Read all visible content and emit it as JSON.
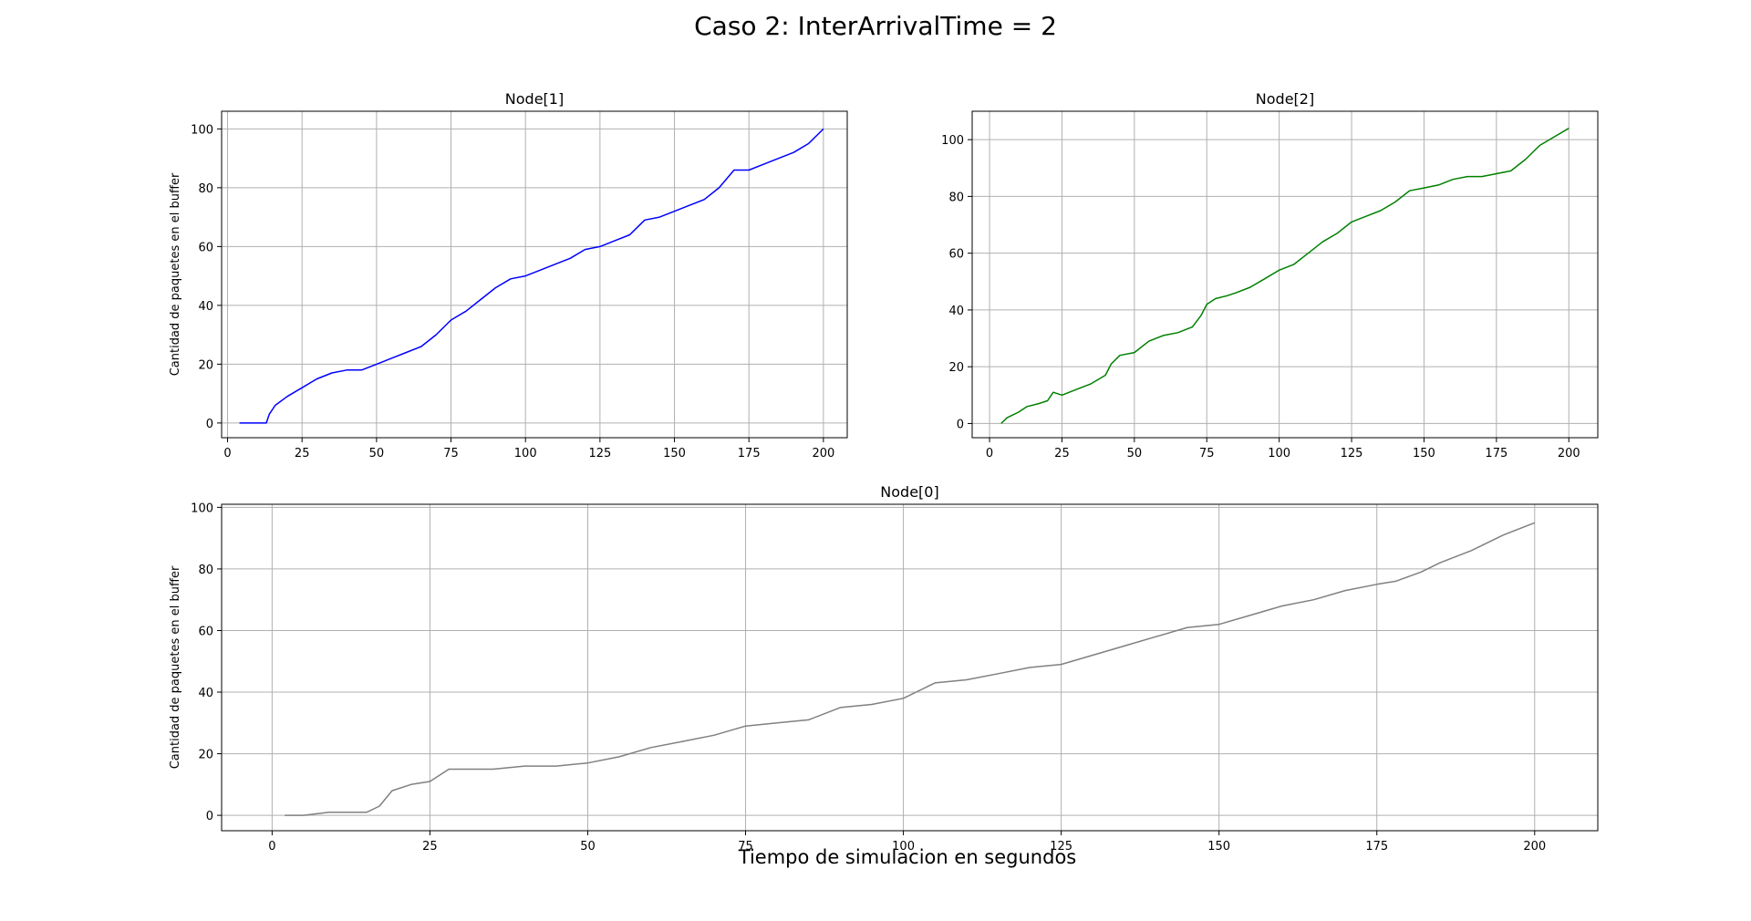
{
  "figure": {
    "suptitle": "Caso 2: InterArrivalTime = 2",
    "xlabel": "Tiempo de simulacion en segundos"
  },
  "chart_data": [
    {
      "type": "line",
      "title": "Node[1]",
      "xlabel": "",
      "ylabel": "Cantidad de paquetes en el buffer",
      "xlim": [
        -2,
        208
      ],
      "ylim": [
        -5,
        106
      ],
      "xticks": [
        0,
        25,
        50,
        75,
        100,
        125,
        150,
        175,
        200
      ],
      "yticks": [
        0,
        20,
        40,
        60,
        80,
        100
      ],
      "grid": true,
      "series": [
        {
          "color": "#0000ff",
          "x": [
            4,
            8,
            13,
            14,
            16,
            20,
            25,
            30,
            35,
            40,
            45,
            50,
            55,
            60,
            65,
            70,
            75,
            80,
            85,
            90,
            95,
            100,
            105,
            110,
            115,
            120,
            125,
            130,
            135,
            140,
            145,
            150,
            155,
            160,
            165,
            170,
            175,
            180,
            185,
            190,
            195,
            200
          ],
          "y": [
            0,
            0,
            0,
            3,
            6,
            9,
            12,
            15,
            17,
            18,
            18,
            20,
            22,
            24,
            26,
            30,
            35,
            38,
            42,
            46,
            49,
            50,
            52,
            54,
            56,
            59,
            60,
            62,
            64,
            69,
            70,
            72,
            74,
            76,
            80,
            86,
            86,
            88,
            90,
            92,
            95,
            100
          ]
        }
      ]
    },
    {
      "type": "line",
      "title": "Node[2]",
      "xlabel": "",
      "ylabel": "",
      "xlim": [
        -6,
        210
      ],
      "ylim": [
        -5,
        110
      ],
      "xticks": [
        0,
        25,
        50,
        75,
        100,
        125,
        150,
        175,
        200
      ],
      "yticks": [
        0,
        20,
        40,
        60,
        80,
        100
      ],
      "grid": true,
      "series": [
        {
          "color": "#008000",
          "x": [
            4,
            6,
            8,
            10,
            13,
            17,
            20,
            22,
            25,
            30,
            35,
            40,
            42,
            45,
            50,
            55,
            60,
            65,
            70,
            73,
            75,
            78,
            82,
            85,
            90,
            95,
            100,
            105,
            110,
            115,
            120,
            125,
            130,
            135,
            140,
            145,
            150,
            155,
            160,
            165,
            170,
            175,
            180,
            185,
            190,
            195,
            200
          ],
          "y": [
            0,
            2,
            3,
            4,
            6,
            7,
            8,
            11,
            10,
            12,
            14,
            17,
            21,
            24,
            25,
            29,
            31,
            32,
            34,
            38,
            42,
            44,
            45,
            46,
            48,
            51,
            54,
            56,
            60,
            64,
            67,
            71,
            73,
            75,
            78,
            82,
            83,
            84,
            86,
            87,
            87,
            88,
            89,
            93,
            98,
            101,
            104
          ]
        }
      ]
    },
    {
      "type": "line",
      "title": "Node[0]",
      "xlabel": "Tiempo de simulacion en segundos",
      "ylabel": "Cantidad de paquetes en el buffer",
      "xlim": [
        -8,
        210
      ],
      "ylim": [
        -5,
        101
      ],
      "xticks": [
        0,
        25,
        50,
        75,
        100,
        125,
        150,
        175,
        200
      ],
      "yticks": [
        0,
        20,
        40,
        60,
        80,
        100
      ],
      "grid": true,
      "series": [
        {
          "color": "#808080",
          "x": [
            2,
            5,
            9,
            12,
            15,
            17,
            19,
            22,
            25,
            28,
            30,
            35,
            40,
            45,
            50,
            55,
            60,
            65,
            70,
            75,
            80,
            85,
            90,
            95,
            100,
            105,
            110,
            115,
            120,
            125,
            130,
            135,
            140,
            145,
            150,
            155,
            160,
            165,
            170,
            175,
            178,
            182,
            185,
            190,
            195,
            200
          ],
          "y": [
            0,
            0,
            1,
            1,
            1,
            3,
            8,
            10,
            11,
            15,
            15,
            15,
            16,
            16,
            17,
            19,
            22,
            24,
            26,
            29,
            30,
            31,
            35,
            36,
            38,
            43,
            44,
            46,
            48,
            49,
            52,
            55,
            58,
            61,
            62,
            65,
            68,
            70,
            73,
            75,
            76,
            79,
            82,
            86,
            91,
            95
          ]
        }
      ]
    }
  ]
}
